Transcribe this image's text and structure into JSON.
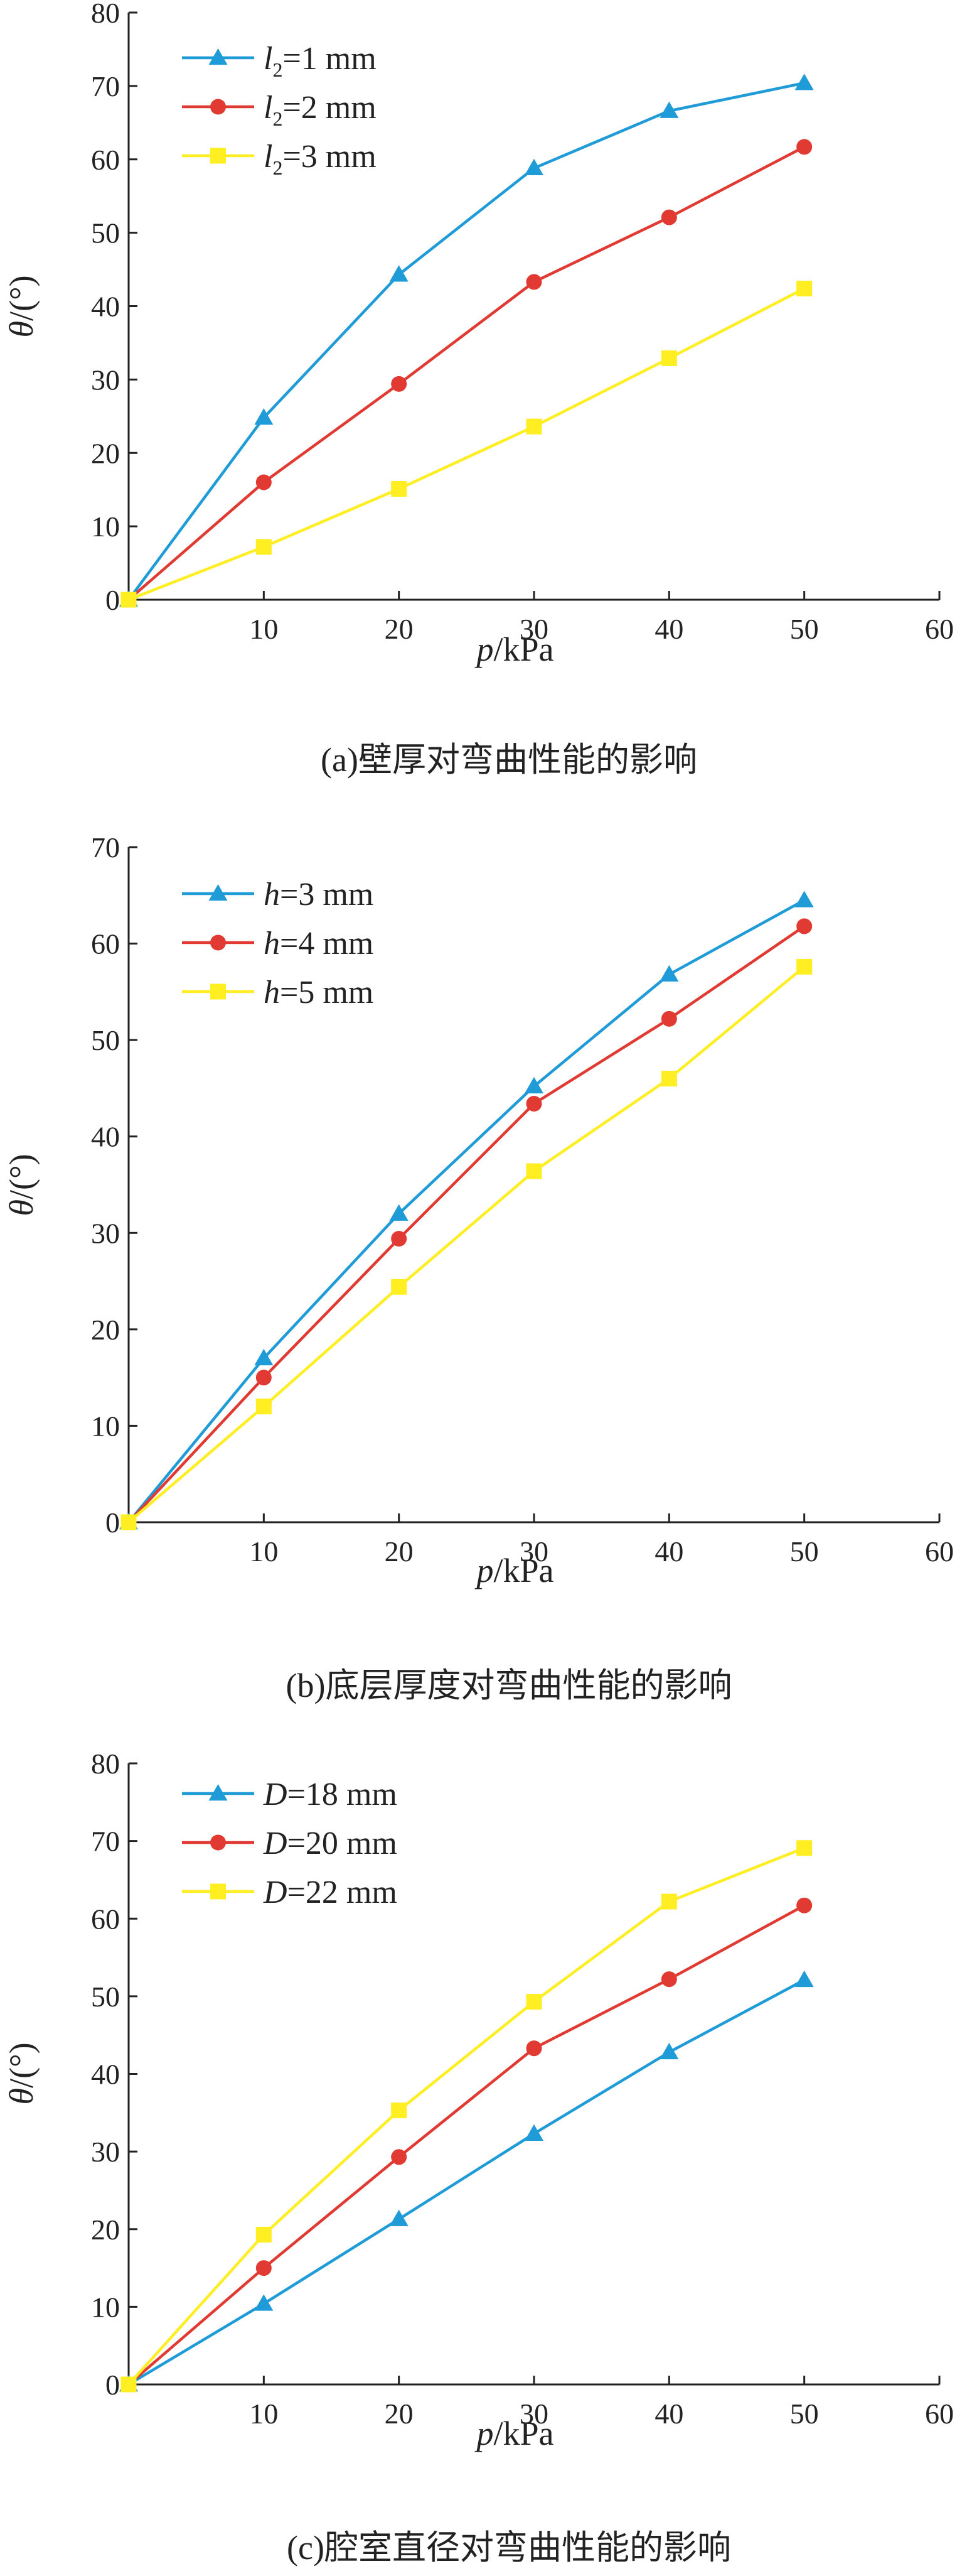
{
  "chart_data": [
    {
      "type": "line",
      "caption": "(a)壁厚对弯曲性能的影响",
      "xlabel": "p/kPa",
      "ylabel": "θ/(°)",
      "xlim": [
        0,
        60
      ],
      "ylim": [
        0,
        80
      ],
      "xticks": [
        10,
        20,
        30,
        40,
        50,
        60
      ],
      "yticks": [
        0,
        10,
        20,
        30,
        40,
        50,
        60,
        70,
        80
      ],
      "grid": false,
      "legend_position": "top-left",
      "x": [
        0,
        10,
        20,
        30,
        40,
        50
      ],
      "series": [
        {
          "name": "l2=1 mm",
          "legend_var": "l",
          "legend_sub": "2",
          "legend_rest": "=1 mm",
          "color": "#1f9bd7",
          "marker": "triangle",
          "values": [
            0,
            24.8,
            44.3,
            58.8,
            66.6,
            70.4
          ]
        },
        {
          "name": "l2=2 mm",
          "legend_var": "l",
          "legend_sub": "2",
          "legend_rest": "=2 mm",
          "color": "#e03a32",
          "marker": "circle",
          "values": [
            0,
            16.0,
            29.4,
            43.3,
            52.1,
            61.7
          ]
        },
        {
          "name": "l2=3 mm",
          "legend_var": "l",
          "legend_sub": "2",
          "legend_rest": "=3 mm",
          "color": "#ffee22",
          "marker": "square",
          "values": [
            0,
            7.2,
            15.1,
            23.6,
            32.9,
            42.4
          ]
        }
      ]
    },
    {
      "type": "line",
      "caption": "(b)底层厚度对弯曲性能的影响",
      "xlabel": "p/kPa",
      "ylabel": "θ/(°)",
      "xlim": [
        0,
        60
      ],
      "ylim": [
        0,
        70
      ],
      "xticks": [
        10,
        20,
        30,
        40,
        50,
        60
      ],
      "yticks": [
        0,
        10,
        20,
        30,
        40,
        50,
        60,
        70
      ],
      "grid": false,
      "legend_position": "top-left",
      "x": [
        0,
        10,
        20,
        30,
        40,
        50
      ],
      "series": [
        {
          "name": "h=3 mm",
          "legend_var": "h",
          "legend_sub": "",
          "legend_rest": "=3 mm",
          "color": "#1f9bd7",
          "marker": "triangle",
          "values": [
            0,
            17.0,
            32.0,
            45.2,
            56.8,
            64.5
          ]
        },
        {
          "name": "h=4 mm",
          "legend_var": "h",
          "legend_sub": "",
          "legend_rest": "=4 mm",
          "color": "#e03a32",
          "marker": "circle",
          "values": [
            0,
            15.0,
            29.4,
            43.4,
            52.2,
            61.8
          ]
        },
        {
          "name": "h=5 mm",
          "legend_var": "h",
          "legend_sub": "",
          "legend_rest": "=5 mm",
          "color": "#ffee22",
          "marker": "square",
          "values": [
            0,
            12.0,
            24.4,
            36.4,
            46.0,
            57.6
          ]
        }
      ]
    },
    {
      "type": "line",
      "caption": "(c)腔室直径对弯曲性能的影响",
      "xlabel": "p/kPa",
      "ylabel": "θ/(°)",
      "xlim": [
        0,
        60
      ],
      "ylim": [
        0,
        80
      ],
      "xticks": [
        10,
        20,
        30,
        40,
        50,
        60
      ],
      "yticks": [
        0,
        10,
        20,
        30,
        40,
        50,
        60,
        70,
        80
      ],
      "grid": false,
      "legend_position": "top-left",
      "x": [
        0,
        10,
        20,
        30,
        40,
        50
      ],
      "series": [
        {
          "name": "D=18 mm",
          "legend_var": "D",
          "legend_sub": "",
          "legend_rest": "=18 mm",
          "color": "#1f9bd7",
          "marker": "triangle",
          "values": [
            0,
            10.4,
            21.3,
            32.3,
            42.8,
            52.1
          ]
        },
        {
          "name": "D=20 mm",
          "legend_var": "D",
          "legend_sub": "",
          "legend_rest": "=20 mm",
          "color": "#e03a32",
          "marker": "circle",
          "values": [
            0,
            15.0,
            29.3,
            43.3,
            52.2,
            61.7
          ]
        },
        {
          "name": "D=22 mm",
          "legend_var": "D",
          "legend_sub": "",
          "legend_rest": "=22 mm",
          "color": "#ffee22",
          "marker": "square",
          "values": [
            0,
            19.3,
            35.3,
            49.3,
            62.2,
            69.1
          ]
        }
      ]
    }
  ]
}
